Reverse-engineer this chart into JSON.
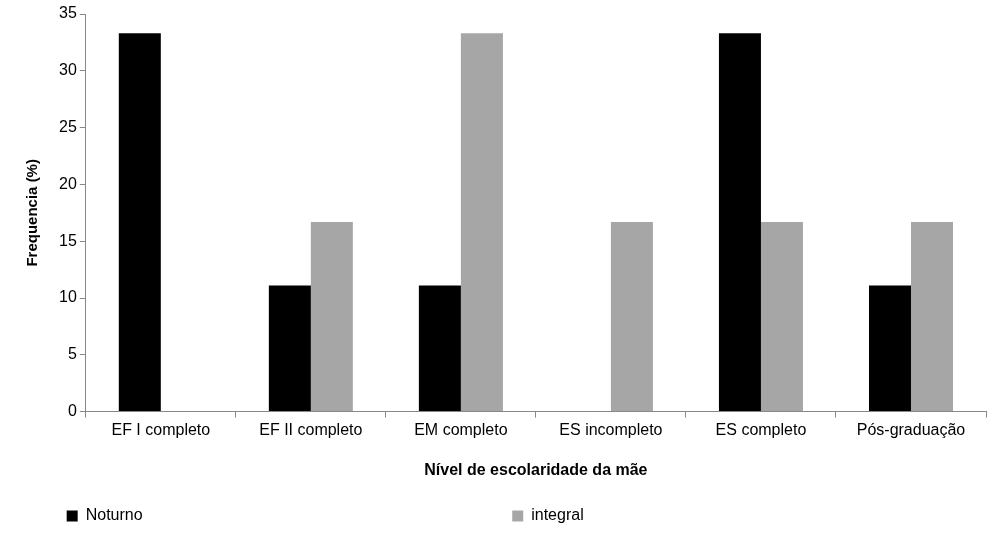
{
  "chart_data": {
    "type": "bar",
    "xlabel": "Nível de escolaridade da mãe",
    "ylabel": "Frequencia (%)",
    "categories": [
      "EF I completo",
      "EF II completo",
      "EM completo",
      "ES incompleto",
      "ES completo",
      "Pós-graduação"
    ],
    "series": [
      {
        "name": "Noturno",
        "color": "#000000",
        "values": [
          33.3,
          11.1,
          11.1,
          0,
          33.3,
          11.1
        ]
      },
      {
        "name": "integral",
        "color": "#a6a6a6",
        "values": [
          0,
          16.7,
          33.3,
          16.7,
          16.7,
          16.7
        ]
      }
    ],
    "ylim": [
      0,
      35
    ],
    "yticks": [
      0,
      5,
      10,
      15,
      20,
      25,
      30,
      35
    ],
    "legend": "bottom"
  }
}
